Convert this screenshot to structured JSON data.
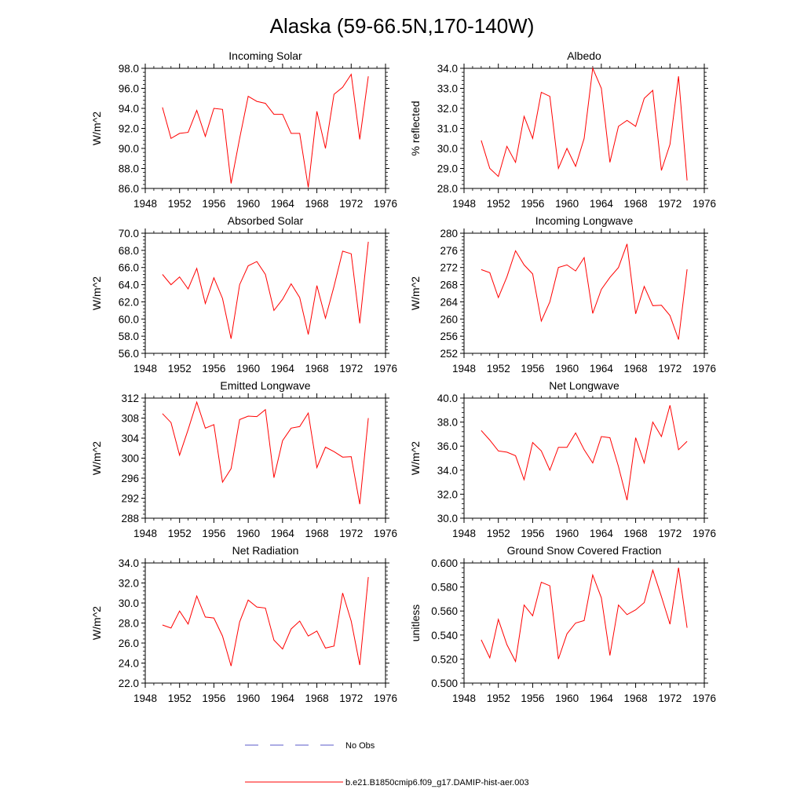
{
  "figure": {
    "title": "Alaska (59-66.5N,170-140W)"
  },
  "legend": {
    "items": [
      {
        "label": "No Obs",
        "color": "#5a5ac8",
        "dash": "dashed"
      },
      {
        "label": "b.e21.B1850cmip6.f09_g17.DAMIP-hist-aer.003",
        "color": "#ff0000",
        "dash": "solid"
      }
    ]
  },
  "chart_data": [
    {
      "type": "line",
      "title": "Incoming Solar",
      "xlabel": "",
      "ylabel": "W/m^2",
      "xlim": [
        1948,
        1976
      ],
      "ylim": [
        86,
        98
      ],
      "xticks": [
        1948,
        1952,
        1956,
        1960,
        1964,
        1968,
        1972,
        1976
      ],
      "xtick_labels": [
        "1948",
        "1952",
        "1956",
        "1960",
        "1964",
        "1968",
        "1972",
        "1976"
      ],
      "yticks": [
        86,
        88,
        90,
        92,
        94,
        96,
        98
      ],
      "ytick_labels": [
        "86.0",
        "88.0",
        "90.0",
        "92.0",
        "94.0",
        "96.0",
        "98.0"
      ],
      "grid": false,
      "x": [
        1950,
        1951,
        1952,
        1953,
        1954,
        1955,
        1956,
        1957,
        1958,
        1959,
        1960,
        1961,
        1962,
        1963,
        1964,
        1965,
        1966,
        1967,
        1968,
        1969,
        1970,
        1971,
        1972,
        1973,
        1974
      ],
      "series": [
        {
          "name": "b.e21.B1850cmip6.f09_g17.DAMIP-hist-aer.003",
          "color": "#ff0000",
          "values": [
            94.1,
            91.0,
            91.5,
            91.6,
            93.8,
            91.2,
            94.0,
            93.9,
            86.5,
            91.0,
            95.2,
            94.7,
            94.5,
            93.4,
            93.4,
            91.5,
            91.5,
            86.1,
            93.7,
            90.0,
            95.4,
            96.1,
            97.4,
            90.9,
            97.2
          ]
        }
      ]
    },
    {
      "type": "line",
      "title": "Albedo",
      "xlabel": "",
      "ylabel": "% reflected",
      "xlim": [
        1948,
        1976
      ],
      "ylim": [
        28,
        34
      ],
      "xticks": [
        1948,
        1952,
        1956,
        1960,
        1964,
        1968,
        1972,
        1976
      ],
      "xtick_labels": [
        "1948",
        "1952",
        "1956",
        "1960",
        "1964",
        "1968",
        "1972",
        "1976"
      ],
      "yticks": [
        28,
        29,
        30,
        31,
        32,
        33,
        34
      ],
      "ytick_labels": [
        "28.0",
        "29.0",
        "30.0",
        "31.0",
        "32.0",
        "33.0",
        "34.0"
      ],
      "grid": false,
      "x": [
        1950,
        1951,
        1952,
        1953,
        1954,
        1955,
        1956,
        1957,
        1958,
        1959,
        1960,
        1961,
        1962,
        1963,
        1964,
        1965,
        1966,
        1967,
        1968,
        1969,
        1970,
        1971,
        1972,
        1973,
        1974
      ],
      "series": [
        {
          "name": "b.e21.B1850cmip6.f09_g17.DAMIP-hist-aer.003",
          "color": "#ff0000",
          "values": [
            30.4,
            29.0,
            28.6,
            30.1,
            29.3,
            31.6,
            30.5,
            32.8,
            32.6,
            29.0,
            30.0,
            29.1,
            30.5,
            34.0,
            33.0,
            29.3,
            31.1,
            31.4,
            31.1,
            32.5,
            32.9,
            28.9,
            30.2,
            33.6,
            28.4
          ]
        }
      ]
    },
    {
      "type": "line",
      "title": "Absorbed Solar",
      "xlabel": "",
      "ylabel": "W/m^2",
      "xlim": [
        1948,
        1976
      ],
      "ylim": [
        56,
        70
      ],
      "xticks": [
        1948,
        1952,
        1956,
        1960,
        1964,
        1968,
        1972,
        1976
      ],
      "xtick_labels": [
        "1948",
        "1952",
        "1956",
        "1960",
        "1964",
        "1968",
        "1972",
        "1976"
      ],
      "yticks": [
        56,
        58,
        60,
        62,
        64,
        66,
        68,
        70
      ],
      "ytick_labels": [
        "56.0",
        "58.0",
        "60.0",
        "62.0",
        "64.0",
        "66.0",
        "68.0",
        "70.0"
      ],
      "grid": false,
      "x": [
        1950,
        1951,
        1952,
        1953,
        1954,
        1955,
        1956,
        1957,
        1958,
        1959,
        1960,
        1961,
        1962,
        1963,
        1964,
        1965,
        1966,
        1967,
        1968,
        1969,
        1970,
        1971,
        1972,
        1973,
        1974
      ],
      "series": [
        {
          "name": "b.e21.B1850cmip6.f09_g17.DAMIP-hist-aer.003",
          "color": "#ff0000",
          "values": [
            65.2,
            64.0,
            64.9,
            63.5,
            65.9,
            61.8,
            64.8,
            62.4,
            57.7,
            64.0,
            66.2,
            66.7,
            65.2,
            61.0,
            62.3,
            64.1,
            62.5,
            58.2,
            63.9,
            60.1,
            63.8,
            67.9,
            67.6,
            59.5,
            69.0
          ]
        }
      ]
    },
    {
      "type": "line",
      "title": "Incoming Longwave",
      "xlabel": "",
      "ylabel": "W/m^2",
      "xlim": [
        1948,
        1976
      ],
      "ylim": [
        252,
        280
      ],
      "xticks": [
        1948,
        1952,
        1956,
        1960,
        1964,
        1968,
        1972,
        1976
      ],
      "xtick_labels": [
        "1948",
        "1952",
        "1956",
        "1960",
        "1964",
        "1968",
        "1972",
        "1976"
      ],
      "yticks": [
        252,
        256,
        260,
        264,
        268,
        272,
        276,
        280
      ],
      "ytick_labels": [
        "252",
        "256",
        "260",
        "264",
        "268",
        "272",
        "276",
        "280"
      ],
      "grid": false,
      "x": [
        1950,
        1951,
        1952,
        1953,
        1954,
        1955,
        1956,
        1957,
        1958,
        1959,
        1960,
        1961,
        1962,
        1963,
        1964,
        1965,
        1966,
        1967,
        1968,
        1969,
        1970,
        1971,
        1972,
        1973,
        1974
      ],
      "series": [
        {
          "name": "b.e21.B1850cmip6.f09_g17.DAMIP-hist-aer.003",
          "color": "#ff0000",
          "values": [
            271.5,
            270.8,
            265.0,
            269.8,
            275.9,
            272.6,
            270.5,
            259.5,
            264.0,
            272.0,
            272.6,
            271.2,
            274.3,
            261.3,
            266.9,
            269.7,
            272.0,
            277.5,
            261.2,
            267.6,
            263.1,
            263.2,
            260.8,
            255.2,
            271.6
          ]
        }
      ]
    },
    {
      "type": "line",
      "title": "Emitted Longwave",
      "xlabel": "",
      "ylabel": "W/m^2",
      "xlim": [
        1948,
        1976
      ],
      "ylim": [
        288,
        312
      ],
      "xticks": [
        1948,
        1952,
        1956,
        1960,
        1964,
        1968,
        1972,
        1976
      ],
      "xtick_labels": [
        "1948",
        "1952",
        "1956",
        "1960",
        "1964",
        "1968",
        "1972",
        "1976"
      ],
      "yticks": [
        288,
        292,
        296,
        300,
        304,
        308,
        312
      ],
      "ytick_labels": [
        "288",
        "292",
        "296",
        "300",
        "304",
        "308",
        "312"
      ],
      "grid": false,
      "x": [
        1950,
        1951,
        1952,
        1953,
        1954,
        1955,
        1956,
        1957,
        1958,
        1959,
        1960,
        1961,
        1962,
        1963,
        1964,
        1965,
        1966,
        1967,
        1968,
        1969,
        1970,
        1971,
        1972,
        1973,
        1974
      ],
      "series": [
        {
          "name": "b.e21.B1850cmip6.f09_g17.DAMIP-hist-aer.003",
          "color": "#ff0000",
          "values": [
            308.9,
            307.1,
            300.6,
            305.7,
            311.2,
            306.0,
            306.7,
            295.2,
            297.9,
            307.7,
            308.4,
            308.3,
            309.7,
            296.1,
            303.5,
            306.0,
            306.3,
            309.0,
            298.1,
            302.2,
            301.3,
            300.2,
            300.3,
            290.8,
            308.0
          ]
        }
      ]
    },
    {
      "type": "line",
      "title": "Net Longwave",
      "xlabel": "",
      "ylabel": "W/m^2",
      "xlim": [
        1948,
        1976
      ],
      "ylim": [
        30,
        40
      ],
      "xticks": [
        1948,
        1952,
        1956,
        1960,
        1964,
        1968,
        1972,
        1976
      ],
      "xtick_labels": [
        "1948",
        "1952",
        "1956",
        "1960",
        "1964",
        "1968",
        "1972",
        "1976"
      ],
      "yticks": [
        30,
        32,
        34,
        36,
        38,
        40
      ],
      "ytick_labels": [
        "30.0",
        "32.0",
        "34.0",
        "36.0",
        "38.0",
        "40.0"
      ],
      "grid": false,
      "x": [
        1950,
        1951,
        1952,
        1953,
        1954,
        1955,
        1956,
        1957,
        1958,
        1959,
        1960,
        1961,
        1962,
        1963,
        1964,
        1965,
        1966,
        1967,
        1968,
        1969,
        1970,
        1971,
        1972,
        1973,
        1974
      ],
      "series": [
        {
          "name": "b.e21.B1850cmip6.f09_g17.DAMIP-hist-aer.003",
          "color": "#ff0000",
          "values": [
            37.3,
            36.5,
            35.6,
            35.5,
            35.2,
            33.2,
            36.3,
            35.6,
            34.0,
            35.9,
            35.9,
            37.1,
            35.7,
            34.6,
            36.8,
            36.7,
            34.3,
            31.5,
            36.7,
            34.6,
            38.0,
            36.8,
            39.4,
            35.7,
            36.4
          ]
        }
      ]
    },
    {
      "type": "line",
      "title": "Net Radiation",
      "xlabel": "",
      "ylabel": "W/m^2",
      "xlim": [
        1948,
        1976
      ],
      "ylim": [
        22,
        34
      ],
      "xticks": [
        1948,
        1952,
        1956,
        1960,
        1964,
        1968,
        1972,
        1976
      ],
      "xtick_labels": [
        "1948",
        "1952",
        "1956",
        "1960",
        "1964",
        "1968",
        "1972",
        "1976"
      ],
      "yticks": [
        22,
        24,
        26,
        28,
        30,
        32,
        34
      ],
      "ytick_labels": [
        "22.0",
        "24.0",
        "26.0",
        "28.0",
        "30.0",
        "32.0",
        "34.0"
      ],
      "grid": false,
      "x": [
        1950,
        1951,
        1952,
        1953,
        1954,
        1955,
        1956,
        1957,
        1958,
        1959,
        1960,
        1961,
        1962,
        1963,
        1964,
        1965,
        1966,
        1967,
        1968,
        1969,
        1970,
        1971,
        1972,
        1973,
        1974
      ],
      "series": [
        {
          "name": "b.e21.B1850cmip6.f09_g17.DAMIP-hist-aer.003",
          "color": "#ff0000",
          "values": [
            27.8,
            27.5,
            29.2,
            27.9,
            30.7,
            28.6,
            28.5,
            26.7,
            23.7,
            28.1,
            30.3,
            29.6,
            29.5,
            26.3,
            25.4,
            27.4,
            28.2,
            26.7,
            27.2,
            25.5,
            25.7,
            31.0,
            28.2,
            23.8,
            32.6
          ]
        }
      ]
    },
    {
      "type": "line",
      "title": "Ground Snow Covered Fraction",
      "xlabel": "",
      "ylabel": "unitless",
      "xlim": [
        1948,
        1976
      ],
      "ylim": [
        0.5,
        0.6
      ],
      "xticks": [
        1948,
        1952,
        1956,
        1960,
        1964,
        1968,
        1972,
        1976
      ],
      "xtick_labels": [
        "1948",
        "1952",
        "1956",
        "1960",
        "1964",
        "1968",
        "1972",
        "1976"
      ],
      "yticks": [
        0.5,
        0.52,
        0.54,
        0.56,
        0.58,
        0.6
      ],
      "ytick_labels": [
        "0.500",
        "0.520",
        "0.540",
        "0.560",
        "0.580",
        "0.600"
      ],
      "grid": false,
      "x": [
        1950,
        1951,
        1952,
        1953,
        1954,
        1955,
        1956,
        1957,
        1958,
        1959,
        1960,
        1961,
        1962,
        1963,
        1964,
        1965,
        1966,
        1967,
        1968,
        1969,
        1970,
        1971,
        1972,
        1973,
        1974
      ],
      "series": [
        {
          "name": "b.e21.B1850cmip6.f09_g17.DAMIP-hist-aer.003",
          "color": "#ff0000",
          "values": [
            0.536,
            0.521,
            0.553,
            0.532,
            0.518,
            0.565,
            0.556,
            0.584,
            0.581,
            0.52,
            0.541,
            0.55,
            0.552,
            0.59,
            0.571,
            0.523,
            0.565,
            0.557,
            0.561,
            0.567,
            0.594,
            0.572,
            0.549,
            0.596,
            0.546
          ]
        }
      ]
    }
  ]
}
